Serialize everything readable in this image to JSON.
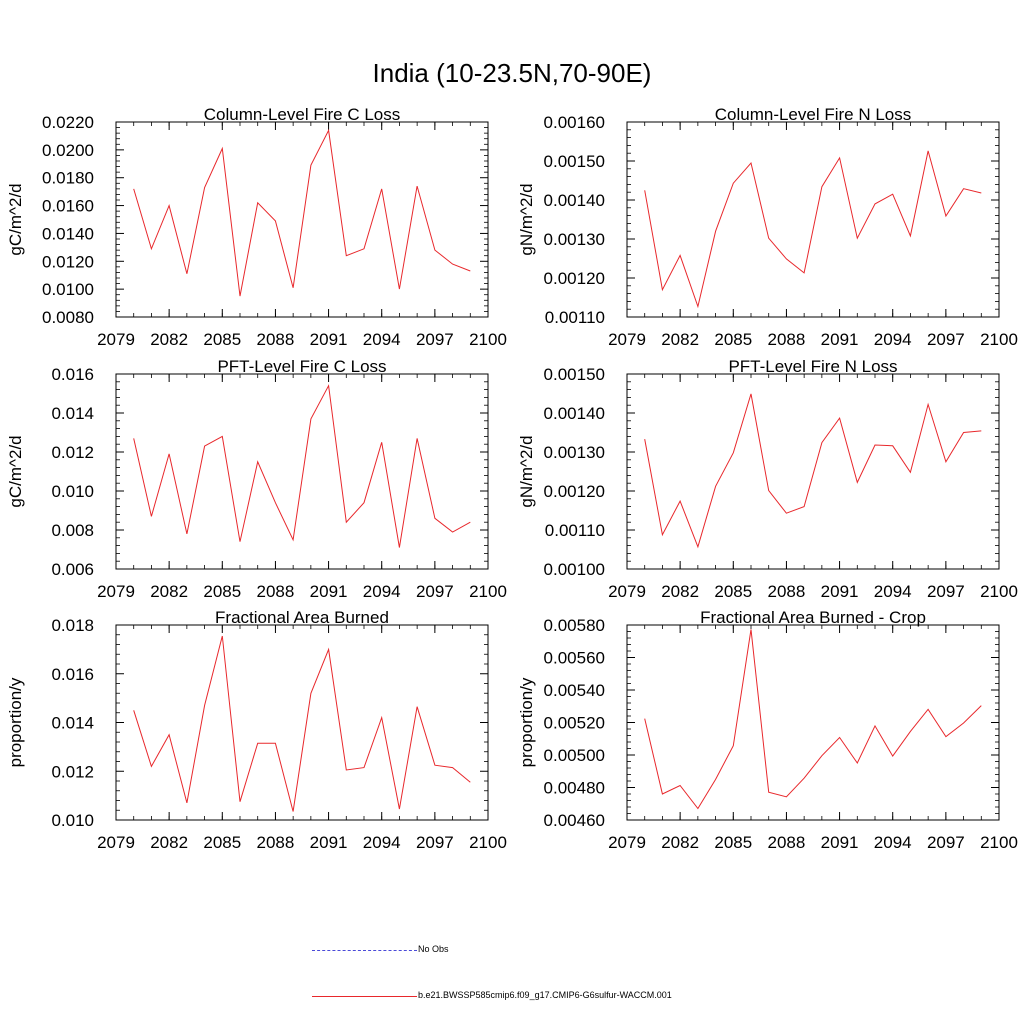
{
  "figure_title": "India (10-23.5N,70-90E)",
  "chart_data": [
    {
      "type": "line",
      "title": "Column-Level Fire C Loss",
      "xlabel": "",
      "ylabel": "gC/m^2/d",
      "xlim": [
        2079,
        2100
      ],
      "ylim": [
        0.008,
        0.022
      ],
      "xticks": [
        "2079",
        "2082",
        "2085",
        "2088",
        "2091",
        "2094",
        "2097",
        "2100"
      ],
      "yticks": [
        "0.0080",
        "0.0100",
        "0.0120",
        "0.0140",
        "0.0160",
        "0.0180",
        "0.0200",
        "0.0220"
      ],
      "x": [
        2080,
        2081,
        2082,
        2083,
        2084,
        2085,
        2086,
        2087,
        2088,
        2089,
        2090,
        2091,
        2092,
        2093,
        2094,
        2095,
        2096,
        2097,
        2098,
        2099
      ],
      "series": [
        {
          "name": "b.e21.BWSSP585cmip6.f09_g17.CMIP6-G6sulfur-WACCM.001",
          "values": [
            0.0172,
            0.0129,
            0.016,
            0.0111,
            0.0173,
            0.0201,
            0.0095,
            0.0162,
            0.0149,
            0.0101,
            0.0189,
            0.0214,
            0.0124,
            0.0129,
            0.0172,
            0.01,
            0.0174,
            0.0128,
            0.0118,
            0.0113
          ]
        }
      ]
    },
    {
      "type": "line",
      "title": "Column-Level Fire N Loss",
      "xlabel": "",
      "ylabel": "gN/m^2/d",
      "xlim": [
        2079,
        2100
      ],
      "ylim": [
        0.0011,
        0.0016
      ],
      "xticks": [
        "2079",
        "2082",
        "2085",
        "2088",
        "2091",
        "2094",
        "2097",
        "2100"
      ],
      "yticks": [
        "0.00110",
        "0.00120",
        "0.00130",
        "0.00140",
        "0.00150",
        "0.00160"
      ],
      "x": [
        2080,
        2081,
        2082,
        2083,
        2084,
        2085,
        2086,
        2087,
        2088,
        2089,
        2090,
        2091,
        2092,
        2093,
        2094,
        2095,
        2096,
        2097,
        2098,
        2099
      ],
      "series": [
        {
          "name": "b.e21.BWSSP585cmip6.f09_g17.CMIP6-G6sulfur-WACCM.001",
          "values": [
            0.001425,
            0.00117,
            0.001258,
            0.001127,
            0.00132,
            0.001443,
            0.001495,
            0.001302,
            0.001249,
            0.001213,
            0.001434,
            0.001508,
            0.001302,
            0.00139,
            0.001415,
            0.001308,
            0.001526,
            0.001359,
            0.001429,
            0.001418
          ]
        }
      ]
    },
    {
      "type": "line",
      "title": "PFT-Level Fire C Loss",
      "xlabel": "",
      "ylabel": "gC/m^2/d",
      "xlim": [
        2079,
        2100
      ],
      "ylim": [
        0.006,
        0.016
      ],
      "xticks": [
        "2079",
        "2082",
        "2085",
        "2088",
        "2091",
        "2094",
        "2097",
        "2100"
      ],
      "yticks": [
        "0.006",
        "0.008",
        "0.010",
        "0.012",
        "0.014",
        "0.016"
      ],
      "x": [
        2080,
        2081,
        2082,
        2083,
        2084,
        2085,
        2086,
        2087,
        2088,
        2089,
        2090,
        2091,
        2092,
        2093,
        2094,
        2095,
        2096,
        2097,
        2098,
        2099
      ],
      "series": [
        {
          "name": "b.e21.BWSSP585cmip6.f09_g17.CMIP6-G6sulfur-WACCM.001",
          "values": [
            0.0127,
            0.0087,
            0.0119,
            0.0078,
            0.0123,
            0.0128,
            0.0074,
            0.0115,
            0.0094,
            0.0075,
            0.0137,
            0.0154,
            0.0084,
            0.0094,
            0.0125,
            0.0071,
            0.0127,
            0.0086,
            0.0079,
            0.0084
          ]
        }
      ]
    },
    {
      "type": "line",
      "title": "PFT-Level Fire N Loss",
      "xlabel": "",
      "ylabel": "gN/m^2/d",
      "xlim": [
        2079,
        2100
      ],
      "ylim": [
        0.001,
        0.0015
      ],
      "xticks": [
        "2079",
        "2082",
        "2085",
        "2088",
        "2091",
        "2094",
        "2097",
        "2100"
      ],
      "yticks": [
        "0.00100",
        "0.00110",
        "0.00120",
        "0.00130",
        "0.00140",
        "0.00150"
      ],
      "x": [
        2080,
        2081,
        2082,
        2083,
        2084,
        2085,
        2086,
        2087,
        2088,
        2089,
        2090,
        2091,
        2092,
        2093,
        2094,
        2095,
        2096,
        2097,
        2098,
        2099
      ],
      "series": [
        {
          "name": "b.e21.BWSSP585cmip6.f09_g17.CMIP6-G6sulfur-WACCM.001",
          "values": [
            0.001333,
            0.001088,
            0.001174,
            0.001057,
            0.001212,
            0.001298,
            0.001449,
            0.001201,
            0.001143,
            0.00116,
            0.001324,
            0.001387,
            0.001222,
            0.001318,
            0.001316,
            0.001248,
            0.001422,
            0.001275,
            0.00135,
            0.001354
          ]
        }
      ]
    },
    {
      "type": "line",
      "title": "Fractional Area Burned",
      "xlabel": "",
      "ylabel": "proportion/y",
      "xlim": [
        2079,
        2100
      ],
      "ylim": [
        0.01,
        0.018
      ],
      "xticks": [
        "2079",
        "2082",
        "2085",
        "2088",
        "2091",
        "2094",
        "2097",
        "2100"
      ],
      "yticks": [
        "0.010",
        "0.012",
        "0.014",
        "0.016",
        "0.018"
      ],
      "x": [
        2080,
        2081,
        2082,
        2083,
        2084,
        2085,
        2086,
        2087,
        2088,
        2089,
        2090,
        2091,
        2092,
        2093,
        2094,
        2095,
        2096,
        2097,
        2098,
        2099
      ],
      "series": [
        {
          "name": "b.e21.BWSSP585cmip6.f09_g17.CMIP6-G6sulfur-WACCM.001",
          "values": [
            0.0145,
            0.0122,
            0.0135,
            0.0107,
            0.0147,
            0.01755,
            0.01075,
            0.01315,
            0.01315,
            0.01035,
            0.0152,
            0.017,
            0.01205,
            0.01215,
            0.0142,
            0.01045,
            0.01465,
            0.01225,
            0.01215,
            0.01155
          ]
        }
      ]
    },
    {
      "type": "line",
      "title": "Fractional Area Burned - Crop",
      "xlabel": "",
      "ylabel": "proportion/y",
      "xlim": [
        2079,
        2100
      ],
      "ylim": [
        0.0046,
        0.0058
      ],
      "xticks": [
        "2079",
        "2082",
        "2085",
        "2088",
        "2091",
        "2094",
        "2097",
        "2100"
      ],
      "yticks": [
        "0.00460",
        "0.00480",
        "0.00500",
        "0.00520",
        "0.00540",
        "0.00560",
        "0.00580"
      ],
      "x": [
        2080,
        2081,
        2082,
        2083,
        2084,
        2085,
        2086,
        2087,
        2088,
        2089,
        2090,
        2091,
        2092,
        2093,
        2094,
        2095,
        2096,
        2097,
        2098,
        2099
      ],
      "series": [
        {
          "name": "b.e21.BWSSP585cmip6.f09_g17.CMIP6-G6sulfur-WACCM.001",
          "values": [
            0.005224,
            0.00476,
            0.004812,
            0.004671,
            0.00485,
            0.005057,
            0.005773,
            0.004771,
            0.004743,
            0.004857,
            0.004996,
            0.005108,
            0.004951,
            0.005179,
            0.004993,
            0.005145,
            0.005281,
            0.005113,
            0.005197,
            0.005304
          ]
        }
      ]
    }
  ],
  "legend": {
    "placement": "bottom-center",
    "entries": [
      {
        "label": "No Obs",
        "color": "#4a4ad8",
        "style": "dashed"
      },
      {
        "label": "b.e21.BWSSP585cmip6.f09_g17.CMIP6-G6sulfur-WACCM.001",
        "color": "#e8282c",
        "style": "solid"
      }
    ]
  },
  "colors": {
    "series": "#e8282c",
    "obs": "#4a4ad8",
    "axis": "#000000"
  }
}
